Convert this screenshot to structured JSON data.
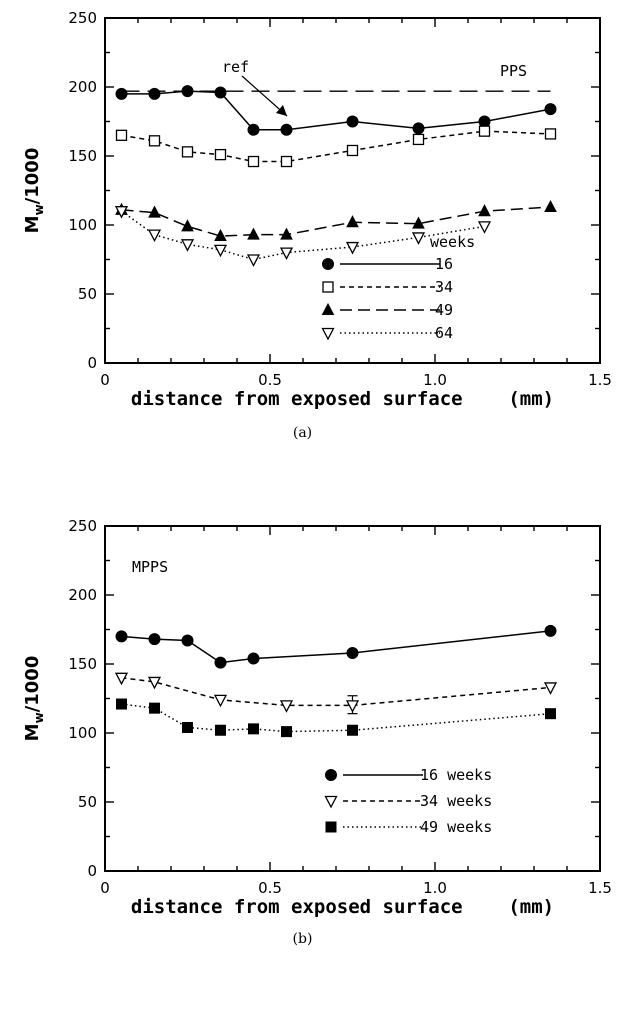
{
  "chart_data": [
    {
      "type": "line",
      "panel_label": "(a)",
      "annotation": "PPS",
      "ref_label": "ref",
      "ref_value": 197,
      "xlabel": "distance from exposed surface    (mm)",
      "ylabel": "M_w/1000",
      "xlim": [
        0,
        1.5
      ],
      "ylim": [
        0,
        250
      ],
      "xticks": [
        "0",
        "0.5",
        "1.0",
        "1.5"
      ],
      "yticks": [
        "0",
        "50",
        "100",
        "150",
        "200",
        "250"
      ],
      "legend_title": "weeks",
      "legend_position": "lower-right",
      "series": [
        {
          "name": "16",
          "marker": "filled-circle",
          "dash": "solid",
          "x": [
            0.05,
            0.15,
            0.25,
            0.35,
            0.45,
            0.55,
            0.75,
            0.95,
            1.15,
            1.35
          ],
          "y": [
            195,
            195,
            197,
            196,
            169,
            169,
            175,
            170,
            175,
            184
          ]
        },
        {
          "name": "34",
          "marker": "open-square",
          "dash": "short-dash",
          "x": [
            0.05,
            0.15,
            0.25,
            0.35,
            0.45,
            0.55,
            0.75,
            0.95,
            1.15,
            1.35
          ],
          "y": [
            165,
            161,
            153,
            151,
            146,
            146,
            154,
            162,
            168,
            166
          ]
        },
        {
          "name": "49",
          "marker": "filled-triangle",
          "dash": "long-dash",
          "x": [
            0.05,
            0.15,
            0.25,
            0.35,
            0.45,
            0.55,
            0.75,
            0.95,
            1.15,
            1.35
          ],
          "y": [
            111,
            109,
            99,
            92,
            93,
            93,
            102,
            101,
            110,
            113
          ]
        },
        {
          "name": "64",
          "marker": "open-triangle-down",
          "dash": "dotted",
          "x": [
            0.05,
            0.15,
            0.25,
            0.35,
            0.45,
            0.55,
            0.75,
            0.95,
            1.15
          ],
          "y": [
            110,
            93,
            86,
            82,
            75,
            80,
            84,
            91,
            99
          ]
        }
      ]
    },
    {
      "type": "line",
      "panel_label": "(b)",
      "annotation": "MPPS",
      "xlabel": "distance from exposed surface    (mm)",
      "ylabel": "M_w/1000",
      "xlim": [
        0,
        1.5
      ],
      "ylim": [
        0,
        250
      ],
      "xticks": [
        "0",
        "0.5",
        "1.0",
        "1.5"
      ],
      "yticks": [
        "0",
        "50",
        "100",
        "150",
        "200",
        "250"
      ],
      "legend_position": "lower-right",
      "series": [
        {
          "name": "16 weeks",
          "marker": "filled-circle",
          "dash": "solid",
          "x": [
            0.05,
            0.15,
            0.25,
            0.35,
            0.45,
            0.75,
            1.35
          ],
          "y": [
            170,
            168,
            167,
            151,
            154,
            158,
            174
          ]
        },
        {
          "name": "34 weeks",
          "marker": "open-triangle-down",
          "dash": "short-dash",
          "x": [
            0.05,
            0.15,
            0.35,
            0.55,
            0.75,
            1.35
          ],
          "y": [
            140,
            137,
            124,
            120,
            120,
            133
          ],
          "errorbars": [
            {
              "x": 0.75,
              "low": 114,
              "high": 127
            }
          ]
        },
        {
          "name": "49 weeks",
          "marker": "filled-square",
          "dash": "dotted",
          "x": [
            0.05,
            0.15,
            0.25,
            0.35,
            0.45,
            0.55,
            0.75,
            1.35
          ],
          "y": [
            121,
            118,
            104,
            102,
            103,
            101,
            102,
            114
          ]
        }
      ]
    }
  ]
}
